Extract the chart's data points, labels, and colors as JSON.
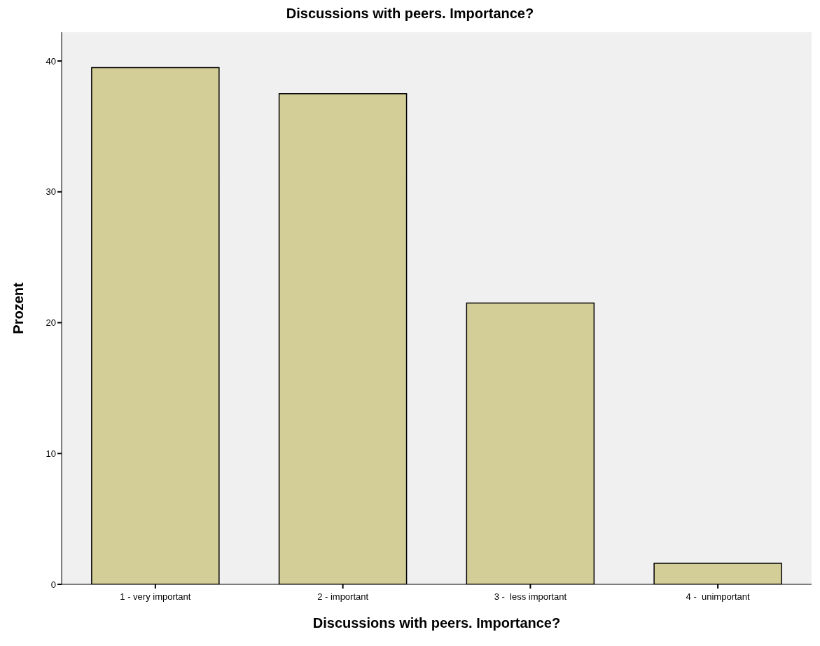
{
  "chart_data": {
    "type": "bar",
    "title": "Discussions with peers. Importance?",
    "xlabel": "Discussions with peers. Importance?",
    "ylabel": "Prozent",
    "categories": [
      "1 - very important",
      "2 - important",
      "3 -  less important",
      "4 -  unimportant"
    ],
    "values": [
      39.5,
      37.5,
      21.5,
      1.6
    ],
    "color": "#d3ce97",
    "ylim": [
      0,
      42.2
    ],
    "yticks": [
      0,
      10,
      20,
      30,
      40
    ],
    "grid": false
  }
}
